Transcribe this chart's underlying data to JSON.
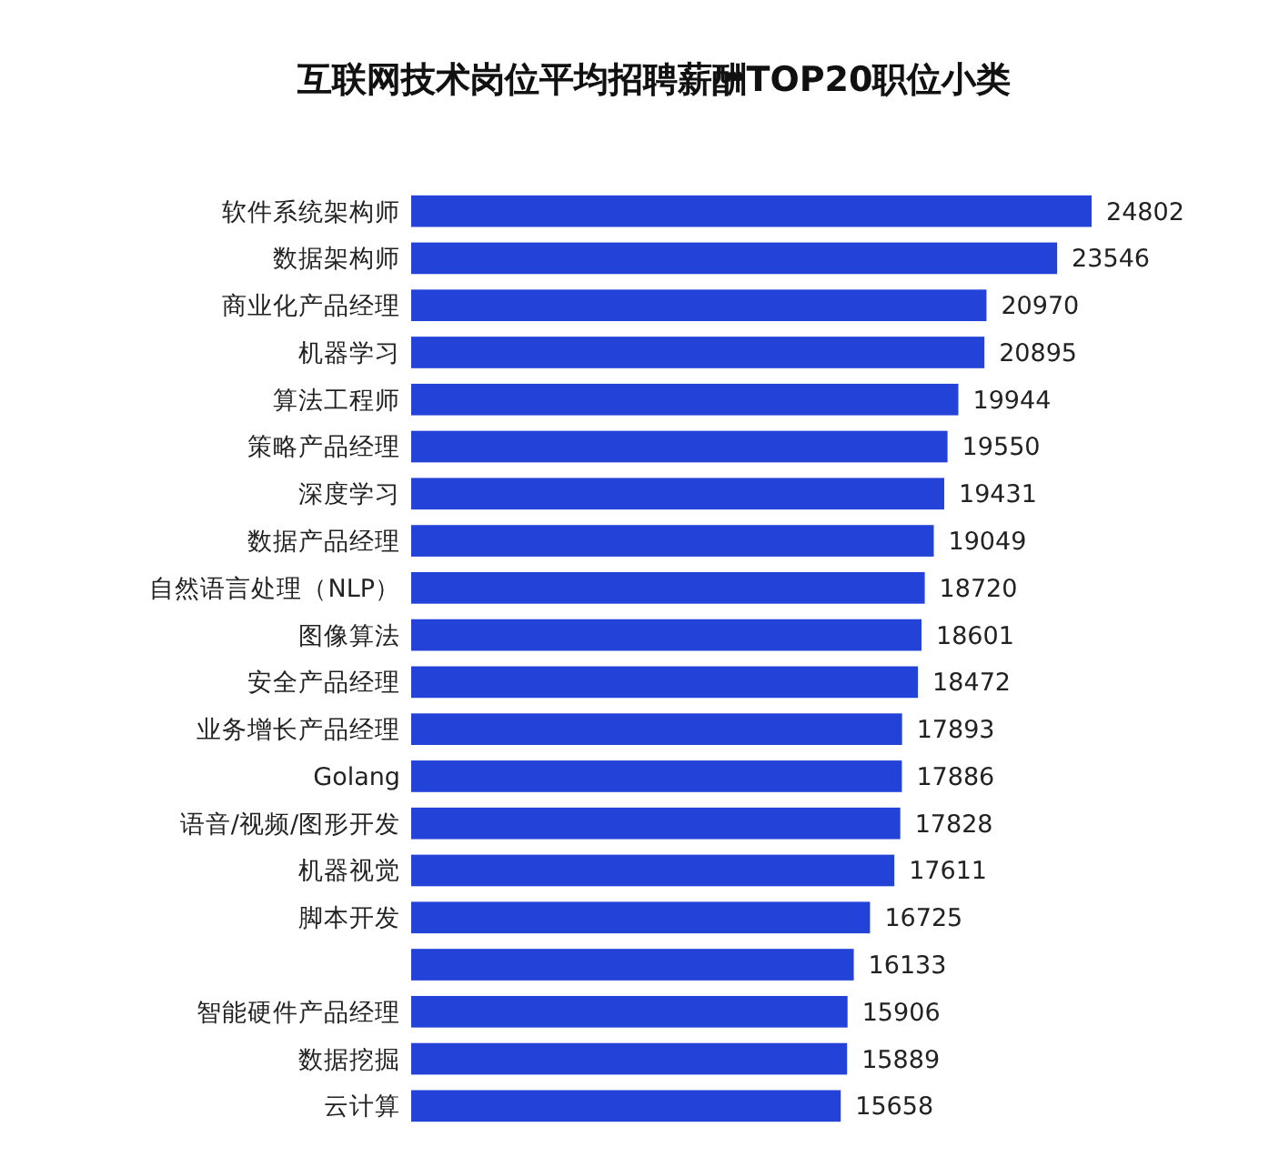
{
  "chart_data": {
    "type": "bar",
    "orientation": "horizontal",
    "title": "互联网技术岗位平均招聘薪酬TOP20职位小类",
    "categories": [
      "软件系统架构师",
      "数据架构师",
      "商业化产品经理",
      "机器学习",
      "算法工程师",
      "策略产品经理",
      "深度学习",
      "数据产品经理",
      "自然语言处理（NLP）",
      "图像算法",
      "安全产品经理",
      "业务增长产品经理",
      "Golang",
      "语音/视频/图形开发",
      "机器视觉",
      "脚本开发",
      null,
      "智能硬件产品经理",
      "数据挖掘",
      "云计算"
    ],
    "values": [
      24802,
      23546,
      20970,
      20895,
      19944,
      19550,
      19431,
      19049,
      18720,
      18601,
      18472,
      17893,
      17886,
      17828,
      17611,
      16725,
      16133,
      15906,
      15889,
      15658
    ],
    "color": "#2342d8",
    "data_labels": true
  }
}
